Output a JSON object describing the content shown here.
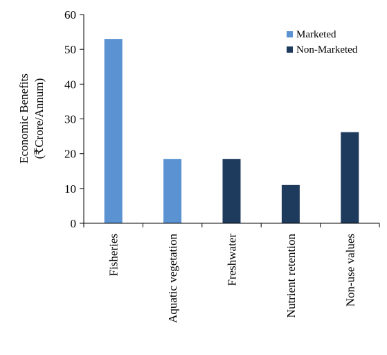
{
  "chart_data": {
    "type": "bar",
    "title": "",
    "xlabel": "",
    "ylabel": "Economic Benefits",
    "ylabel_unit": "(₹Crore/Annum)",
    "categories": [
      "Fisheries",
      "Aquatic vegetation",
      "Freshwater",
      "Nutrient retention",
      "Non-use values"
    ],
    "ylim": [
      0,
      60
    ],
    "yticks": [
      0,
      10,
      20,
      30,
      40,
      50,
      60
    ],
    "grid": false,
    "legend_position": "top-right",
    "series": [
      {
        "name": "Marketed",
        "color": "#5b93d2",
        "values": [
          53,
          18.5,
          null,
          null,
          null
        ]
      },
      {
        "name": "Non-Marketed",
        "color": "#1e3a5c",
        "values": [
          null,
          null,
          18.5,
          11,
          26.2
        ]
      }
    ]
  }
}
